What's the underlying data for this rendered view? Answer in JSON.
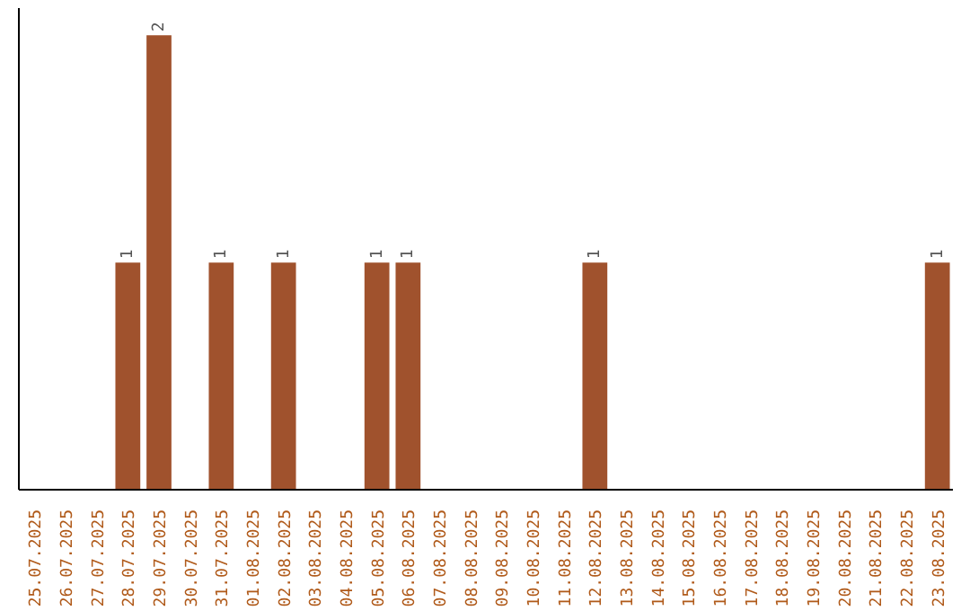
{
  "chart_data": {
    "type": "bar",
    "categories": [
      "25.07.2025",
      "26.07.2025",
      "27.07.2025",
      "28.07.2025",
      "29.07.2025",
      "30.07.2025",
      "31.07.2025",
      "01.08.2025",
      "02.08.2025",
      "03.08.2025",
      "04.08.2025",
      "05.08.2025",
      "06.08.2025",
      "07.08.2025",
      "08.08.2025",
      "09.08.2025",
      "10.08.2025",
      "11.08.2025",
      "12.08.2025",
      "13.08.2025",
      "14.08.2025",
      "15.08.2025",
      "16.08.2025",
      "17.08.2025",
      "18.08.2025",
      "19.08.2025",
      "20.08.2025",
      "21.08.2025",
      "22.08.2025",
      "23.08.2025"
    ],
    "values": [
      null,
      null,
      null,
      1,
      2,
      null,
      1,
      null,
      1,
      null,
      null,
      1,
      1,
      null,
      null,
      null,
      null,
      null,
      1,
      null,
      null,
      null,
      null,
      null,
      null,
      null,
      null,
      null,
      null,
      1
    ],
    "color": "#a0522d",
    "data_labels": true,
    "grid": false,
    "tick_labels": "x"
  }
}
